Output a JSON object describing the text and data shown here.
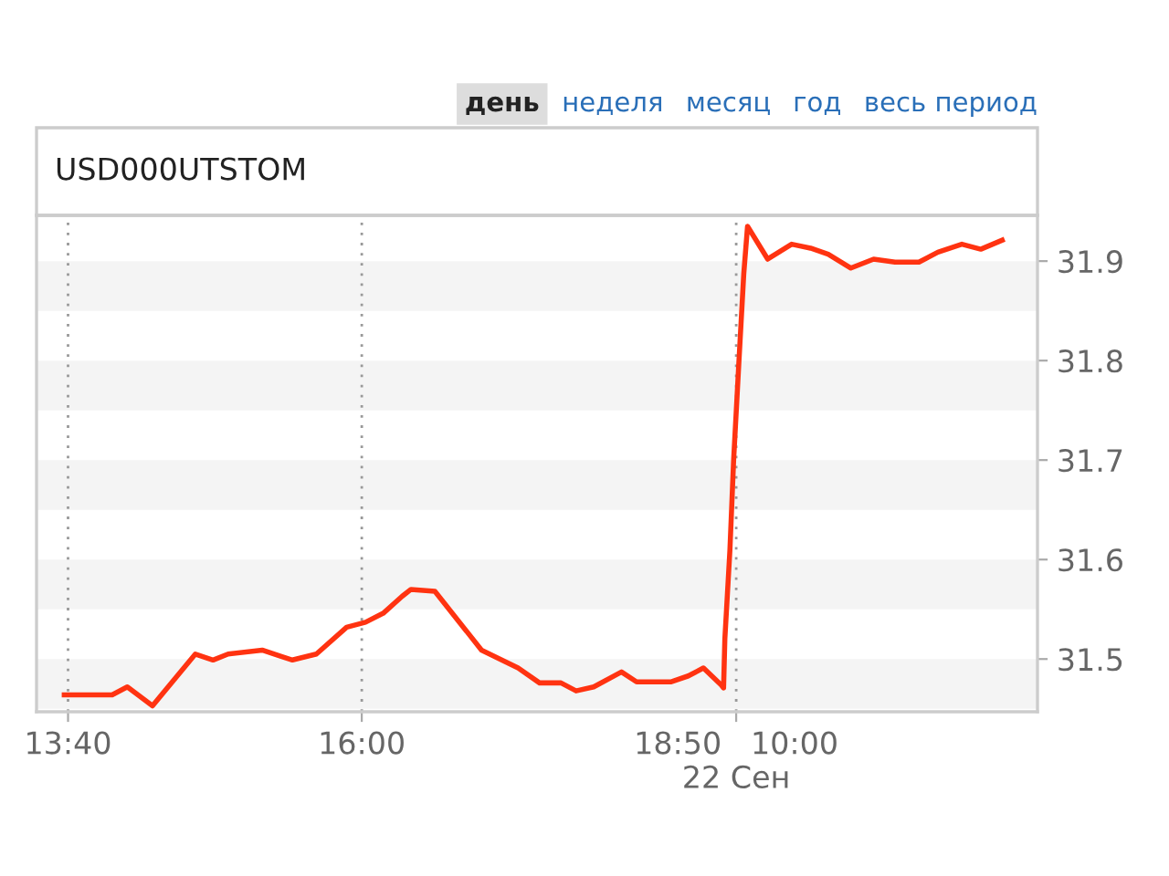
{
  "chart_data": {
    "type": "line",
    "title": "USD000UTSTOM",
    "annotations": [
      "день",
      "неделя",
      "месяц",
      "год",
      "весь период"
    ],
    "x": [
      13.64,
      14.02,
      14.14,
      14.34,
      14.68,
      14.82,
      14.94,
      15.21,
      15.35,
      15.45,
      15.64,
      15.88,
      16.03,
      16.17,
      16.32,
      16.39,
      16.58,
      16.95,
      17.24,
      17.41,
      17.58,
      17.7,
      17.84,
      18.06,
      18.18,
      18.45,
      18.59,
      18.71,
      18.85,
      18.87,
      18.88,
      18.92,
      18.95,
      18.99,
      19.03,
      19.06,
      19.22,
      19.41,
      19.56,
      19.7,
      19.88,
      20.06,
      20.23,
      20.42,
      20.57,
      20.76,
      20.91,
      21.08
    ],
    "series": [
      {
        "color": "#ff3311",
        "values": [
          31.464,
          31.464,
          31.472,
          31.453,
          31.505,
          31.499,
          31.505,
          31.509,
          31.503,
          31.499,
          31.505,
          31.532,
          31.537,
          31.546,
          31.563,
          31.57,
          31.568,
          31.509,
          31.491,
          31.476,
          31.476,
          31.468,
          31.472,
          31.487,
          31.477,
          31.477,
          31.483,
          31.491,
          31.474,
          31.471,
          31.52,
          31.609,
          31.701,
          31.795,
          31.887,
          31.935,
          31.902,
          31.917,
          31.913,
          31.907,
          31.893,
          31.902,
          31.899,
          31.899,
          31.909,
          31.917,
          31.912,
          31.921
        ]
      }
    ],
    "xlim": [
      13.42,
      21.36
    ],
    "ylim": [
      31.447,
      31.946
    ],
    "xticks": [
      {
        "value": 13.67,
        "label": "13:40"
      },
      {
        "value": 16.0,
        "label": "16:00"
      },
      {
        "value": 18.97,
        "label": "18:50   10:00\n22 Сен"
      }
    ],
    "yticks": [
      31.5,
      31.6,
      31.7,
      31.8,
      31.9
    ],
    "bands": [
      {
        "axis": "y",
        "from": 31.45,
        "to": 31.5,
        "color": "#f4f4f4"
      },
      {
        "axis": "y",
        "from": 31.55,
        "to": 31.6,
        "color": "#f4f4f4"
      },
      {
        "axis": "y",
        "from": 31.65,
        "to": 31.7,
        "color": "#f4f4f4"
      },
      {
        "axis": "y",
        "from": 31.75,
        "to": 31.8,
        "color": "#f4f4f4"
      },
      {
        "axis": "y",
        "from": 31.85,
        "to": 31.9,
        "color": "#f4f4f4"
      }
    ],
    "grid": "x",
    "legend": false,
    "marker": "none",
    "line_style": "solid"
  }
}
